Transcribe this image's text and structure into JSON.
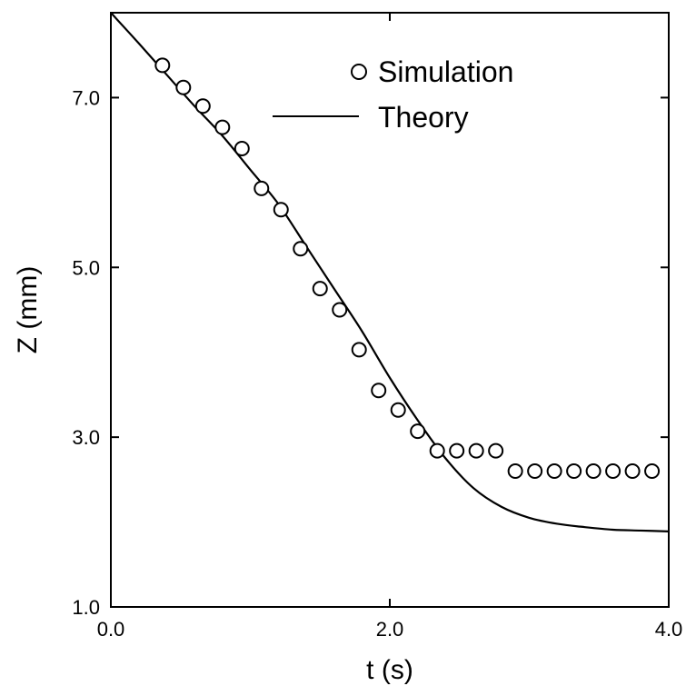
{
  "chart_data": {
    "type": "scatter",
    "title": "",
    "xlabel": "t (s)",
    "ylabel": "Z (mm)",
    "xlim": [
      0.0,
      4.0
    ],
    "ylim": [
      1.0,
      8.0
    ],
    "x_ticks": [
      {
        "value": 0.0,
        "label": "0.0"
      },
      {
        "value": 2.0,
        "label": "2.0"
      },
      {
        "value": 4.0,
        "label": "4.0"
      }
    ],
    "y_ticks": [
      {
        "value": 1.0,
        "label": "1.0"
      },
      {
        "value": 3.0,
        "label": "3.0"
      },
      {
        "value": 5.0,
        "label": "5.0"
      },
      {
        "value": 7.0,
        "label": "7.0"
      }
    ],
    "grid": false,
    "legend_position": "top-right",
    "series": [
      {
        "name": "Simulation",
        "kind": "markers",
        "marker": "open-circle",
        "x": [
          0.37,
          0.52,
          0.66,
          0.8,
          0.94,
          1.08,
          1.22,
          1.36,
          1.5,
          1.64,
          1.78,
          1.92,
          2.06,
          2.2,
          2.34,
          2.48,
          2.62,
          2.76,
          2.9,
          3.04,
          3.18,
          3.32,
          3.46,
          3.6,
          3.74,
          3.88
        ],
        "y": [
          7.38,
          7.12,
          6.9,
          6.65,
          6.4,
          5.93,
          5.68,
          5.22,
          4.75,
          4.5,
          4.03,
          3.55,
          3.32,
          3.07,
          2.84,
          2.84,
          2.84,
          2.84,
          2.6,
          2.6,
          2.6,
          2.6,
          2.6,
          2.6,
          2.6,
          2.6
        ]
      },
      {
        "name": "Theory",
        "kind": "line",
        "x": [
          0.0,
          0.2,
          0.4,
          0.6,
          0.8,
          1.0,
          1.2,
          1.4,
          1.6,
          1.8,
          2.0,
          2.2,
          2.4,
          2.6,
          2.8,
          3.0,
          3.2,
          3.4,
          3.6,
          3.8,
          4.0
        ],
        "y": [
          8.0,
          7.64,
          7.27,
          6.9,
          6.55,
          6.15,
          5.75,
          5.25,
          4.75,
          4.25,
          3.7,
          3.2,
          2.75,
          2.4,
          2.18,
          2.05,
          1.98,
          1.94,
          1.91,
          1.9,
          1.89
        ]
      }
    ],
    "colors": {
      "line": "#000000",
      "marker": "#000000",
      "background": "#ffffff"
    }
  }
}
